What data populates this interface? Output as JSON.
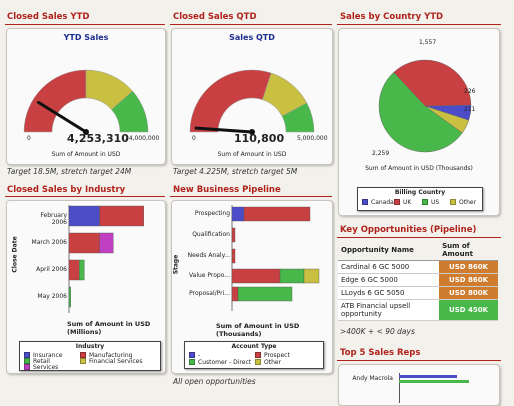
{
  "colors": {
    "red": "#c94043",
    "green": "#48b84a",
    "yellow": "#c9c042",
    "blue": "#4c4cc9",
    "magenta": "#c140c1",
    "orange": "#d07c2e",
    "title": "#b0231c"
  },
  "closed_ytd": {
    "title": "Closed Sales YTD",
    "chart_title": "YTD Sales",
    "value": "4,253,310",
    "min_label": "0",
    "max_label": "24,000,000",
    "unit_label": "Sum of Amount in USD",
    "caption": "Target 18.5M, stretch target 24M"
  },
  "closed_qtd": {
    "title": "Closed Sales QTD",
    "chart_title": "Sales QTD",
    "value": "110,800",
    "min_label": "0",
    "max_label": "5,000,000",
    "unit_label": "Sum of Amount in USD",
    "caption": "Target 4.225M, stretch target 5M"
  },
  "country": {
    "title": "Sales by Country YTD",
    "labels": {
      "l1557": "1,557",
      "l226": "226",
      "l211": "211",
      "l2259": "2,259"
    },
    "unit_label": "Sum of Amount in USD (Thousands)",
    "legend_title": "Billing Country",
    "legend": [
      "Canada",
      "UK",
      "US",
      "Other"
    ]
  },
  "industry": {
    "title": "Closed Sales by Industry",
    "axis_title": "Close Date",
    "categories": [
      "February 2006",
      "March 2006",
      "April 2006",
      "May 2006"
    ],
    "xlabel": "Sum of Amount in USD (Millions)",
    "legend_title": "Industry",
    "legend": [
      "Insurance",
      "Manufacturing",
      "Retail",
      "Financial Services",
      "Services"
    ]
  },
  "pipeline": {
    "title": "New Business Pipeline",
    "axis_title": "Stage",
    "categories": [
      "Prospecting",
      "Qualification",
      "Needs Analy...",
      "Value Propo...",
      "Proposal/Pri..."
    ],
    "xlabel": "Sum of Amount in USD (Thousands)",
    "legend_title": "Account Type",
    "legend": [
      "-",
      "Prospect",
      "Customer - Direct",
      "Other"
    ],
    "caption": "All open opportunities"
  },
  "opportunities": {
    "title": "Key Opportunities (Pipeline)",
    "col_name": "Opportunity Name",
    "col_amount": "Sum of Amount",
    "rows": [
      {
        "name": "Cardinal 6 GC 5000",
        "amount": "USD 860K"
      },
      {
        "name": "Edge 6 GC 5000",
        "amount": "USD 860K"
      },
      {
        "name": "LLoyds 6 GC 5050",
        "amount": "USD 800K"
      },
      {
        "name": "ATB Financial upsell opportunity",
        "amount": "USD 450K"
      }
    ],
    "caption": ">400K + < 90 days"
  },
  "top_reps": {
    "title": "Top 5 Sales Reps",
    "rep1": "Andy Macrola"
  },
  "chart_data": [
    {
      "type": "gauge",
      "title": "YTD Sales",
      "value": 4253310,
      "range": [
        0,
        24000000
      ],
      "bands": [
        {
          "to": 12000000,
          "color": "red"
        },
        {
          "to": 18500000,
          "color": "yellow"
        },
        {
          "to": 24000000,
          "color": "green"
        }
      ]
    },
    {
      "type": "gauge",
      "title": "Sales QTD",
      "value": 110800,
      "range": [
        0,
        5000000
      ],
      "bands": [
        {
          "to": 3000000,
          "color": "red"
        },
        {
          "to": 4225000,
          "color": "yellow"
        },
        {
          "to": 5000000,
          "color": "green"
        }
      ]
    },
    {
      "type": "pie",
      "values": [
        226,
        1557,
        2259,
        211
      ],
      "categories": [
        "Canada",
        "UK",
        "US",
        "Other"
      ]
    },
    {
      "type": "bar",
      "orientation": "horizontal",
      "stacked": true,
      "categories": [
        "February 2006",
        "March 2006",
        "April 2006",
        "May 2006"
      ],
      "series": [
        {
          "name": "Insurance",
          "values": [
            0.9,
            0,
            0,
            0
          ]
        },
        {
          "name": "Manufacturing",
          "values": [
            1.3,
            0.9,
            0.3,
            0
          ]
        },
        {
          "name": "Retail",
          "values": [
            0,
            0,
            0.15,
            0.05
          ]
        },
        {
          "name": "Financial Services",
          "values": [
            0,
            0,
            0,
            0
          ]
        },
        {
          "name": "Services",
          "values": [
            0,
            0.4,
            0,
            0
          ]
        }
      ]
    },
    {
      "type": "bar",
      "orientation": "horizontal",
      "stacked": true,
      "categories": [
        "Prospecting",
        "Qualification",
        "Needs Analy...",
        "Value Propo...",
        "Proposal/Pri..."
      ],
      "series": [
        {
          "name": "-",
          "values": [
            20,
            0,
            0,
            0,
            0
          ]
        },
        {
          "name": "Prospect",
          "values": [
            110,
            5,
            5,
            80,
            10
          ]
        },
        {
          "name": "Customer - Direct",
          "values": [
            0,
            0,
            0,
            40,
            90
          ]
        },
        {
          "name": "Other",
          "values": [
            0,
            0,
            0,
            25,
            0
          ]
        }
      ]
    }
  ]
}
